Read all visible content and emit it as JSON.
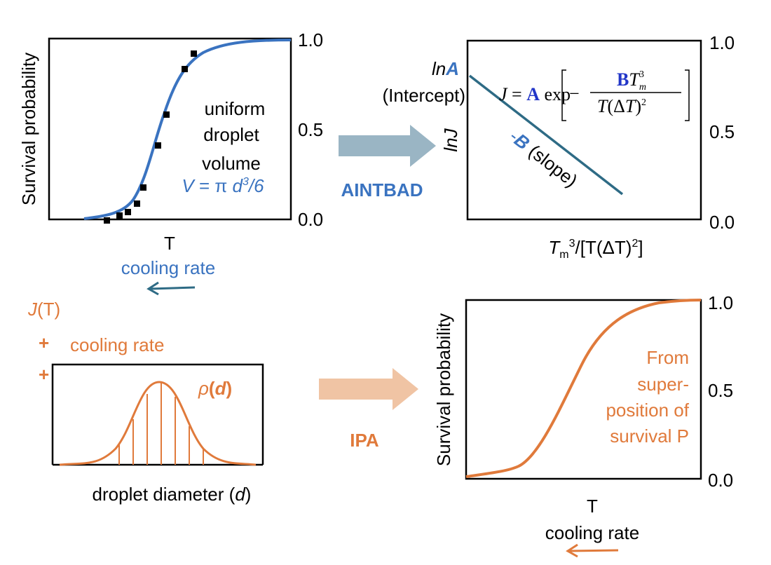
{
  "panel_a": {
    "y_label": "Survival probability",
    "ticks": [
      "1.0",
      "0.5",
      "0.0"
    ],
    "x_label": "T",
    "x_sublabel": "cooling rate",
    "note": [
      "uniform",
      "droplet",
      "volume"
    ],
    "formula": [
      "V",
      " = π ",
      "d",
      "3",
      "/6"
    ]
  },
  "method_a": "AINTBAD",
  "panel_b": {
    "intercept_label": [
      "ln",
      "A"
    ],
    "intercept_note": "(Intercept)",
    "y_label": "lnJ",
    "slope_label": [
      "-",
      "B",
      " (slope)"
    ],
    "equation": {
      "lhs": "J",
      "eq": " = ",
      "a": "A",
      "exp": " exp",
      "minus": "−",
      "num": [
        "B",
        "T",
        "m",
        "3"
      ],
      "den": [
        "T",
        "(Δ",
        "T",
        ")",
        "2"
      ]
    },
    "ticks": [
      "1.0",
      "0.5",
      "0.0"
    ],
    "x_label": [
      "T",
      "m",
      "3",
      "/[T(ΔT)",
      "2",
      "]"
    ]
  },
  "panel_c": {
    "inputs": [
      "J",
      "(T)"
    ],
    "plus": [
      "+",
      "+"
    ],
    "cooling_rate": "cooling rate",
    "density_label": [
      "ρ",
      "(",
      "d",
      ")"
    ],
    "x_label": [
      "droplet diameter (",
      "d",
      ")"
    ]
  },
  "method_c": "IPA",
  "panel_d": {
    "y_label": "Survival probability",
    "ticks": [
      "1.0",
      "0.5",
      "0.0"
    ],
    "note": [
      "From",
      "super-",
      "position of",
      "survival P"
    ],
    "x_label": "T",
    "x_sublabel": "cooling rate"
  }
}
